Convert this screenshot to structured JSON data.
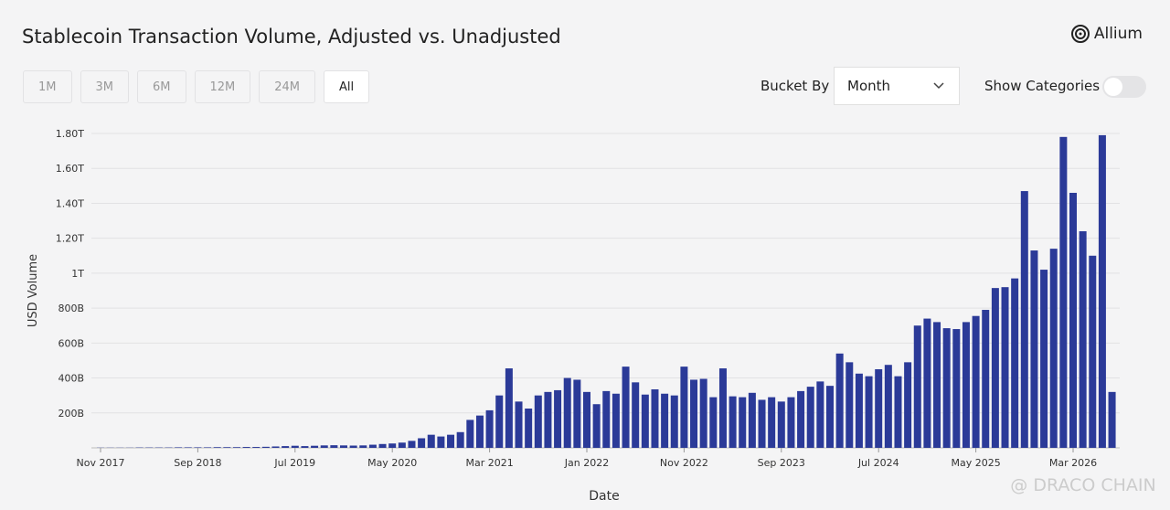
{
  "ui": {
    "brand": "Allium",
    "ranges": [
      "1M",
      "3M",
      "6M",
      "12M",
      "24M",
      "All"
    ],
    "active_range": "All",
    "bucket_label": "Bucket By",
    "bucket_value": "Month",
    "toggle_label": "Show Categories",
    "watermark": "@ DRACO CHAIN"
  },
  "chart_data": {
    "type": "bar",
    "title": "Stablecoin Transaction Volume, Adjusted vs. Unadjusted",
    "x_label": "Date",
    "y_label": "USD Volume",
    "color": "#2b3a98",
    "grid": true,
    "categories": [
      "Nov 2017",
      null,
      null,
      null,
      null,
      null,
      null,
      null,
      null,
      null,
      "Sep 2018",
      null,
      null,
      null,
      null,
      null,
      null,
      null,
      null,
      null,
      "Jul 2019",
      null,
      null,
      null,
      null,
      null,
      null,
      null,
      null,
      null,
      "May 2020",
      null,
      null,
      null,
      null,
      null,
      null,
      null,
      null,
      null,
      "Mar 2021",
      null,
      null,
      null,
      null,
      null,
      null,
      null,
      null,
      null,
      "Jan 2022",
      null,
      null,
      null,
      null,
      null,
      null,
      null,
      null,
      null,
      "Nov 2022",
      null,
      null,
      null,
      null,
      null,
      null,
      null,
      null,
      null,
      "Sep 2023",
      null,
      null,
      null,
      null,
      null,
      null,
      null,
      null,
      null,
      "Jul 2024",
      null,
      null,
      null,
      null,
      null,
      null,
      null,
      null,
      null,
      "May 2025",
      null,
      null,
      null,
      null,
      null,
      null,
      null,
      null,
      null,
      "Mar 2026",
      null,
      null,
      null,
      null
    ],
    "values": [
      1000000000.0,
      1000000000.0,
      1000000000.0,
      1000000000.0,
      2000000000.0,
      2000000000.0,
      2000000000.0,
      2000000000.0,
      3000000000.0,
      3000000000.0,
      3000000000.0,
      3000000000.0,
      4000000000.0,
      4000000000.0,
      4000000000.0,
      5000000000.0,
      5000000000.0,
      6000000000.0,
      8000000000.0,
      10000000000.0,
      12000000000.0,
      10000000000.0,
      12000000000.0,
      14000000000.0,
      15000000000.0,
      14000000000.0,
      13000000000.0,
      14000000000.0,
      18000000000.0,
      22000000000.0,
      25000000000.0,
      30000000000.0,
      40000000000.0,
      55000000000.0,
      75000000000.0,
      65000000000.0,
      75000000000.0,
      90000000000.0,
      160000000000.0,
      185000000000.0,
      215000000000.0,
      300000000000.0,
      455000000000.0,
      265000000000.0,
      225000000000.0,
      300000000000.0,
      320000000000.0,
      330000000000.0,
      400000000000.0,
      390000000000.0,
      320000000000.0,
      250000000000.0,
      325000000000.0,
      310000000000.0,
      465000000000.0,
      375000000000.0,
      305000000000.0,
      335000000000.0,
      310000000000.0,
      300000000000.0,
      465000000000.0,
      390000000000.0,
      395000000000.0,
      290000000000.0,
      455000000000.0,
      295000000000.0,
      290000000000.0,
      315000000000.0,
      275000000000.0,
      290000000000.0,
      265000000000.0,
      290000000000.0,
      325000000000.0,
      350000000000.0,
      380000000000.0,
      355000000000.0,
      540000000000.0,
      490000000000.0,
      425000000000.0,
      410000000000.0,
      450000000000.0,
      475000000000.0,
      410000000000.0,
      490000000000.0,
      700000000000.0,
      740000000000.0,
      720000000000.0,
      685000000000.0,
      680000000000.0,
      720000000000.0,
      755000000000.0,
      790000000000.0,
      915000000000.0,
      920000000000.0,
      970000000000.0,
      1470000000000.0,
      1130000000000.0,
      1020000000000.0,
      1140000000000.0,
      1780000000000.0,
      1460000000000.0,
      1240000000000.0,
      1100000000000.0,
      1790000000000.0,
      320000000000.0
    ],
    "ylim": [
      0,
      1800000000000.0
    ],
    "yticks": [
      {
        "value": 200000000000.0,
        "label": "200B"
      },
      {
        "value": 400000000000.0,
        "label": "400B"
      },
      {
        "value": 600000000000.0,
        "label": "600B"
      },
      {
        "value": 800000000000.0,
        "label": "800B"
      },
      {
        "value": 1000000000000.0,
        "label": "1T"
      },
      {
        "value": 1200000000000.0,
        "label": "1.20T"
      },
      {
        "value": 1400000000000.0,
        "label": "1.40T"
      },
      {
        "value": 1600000000000.0,
        "label": "1.60T"
      },
      {
        "value": 1800000000000.0,
        "label": "1.80T"
      }
    ]
  }
}
